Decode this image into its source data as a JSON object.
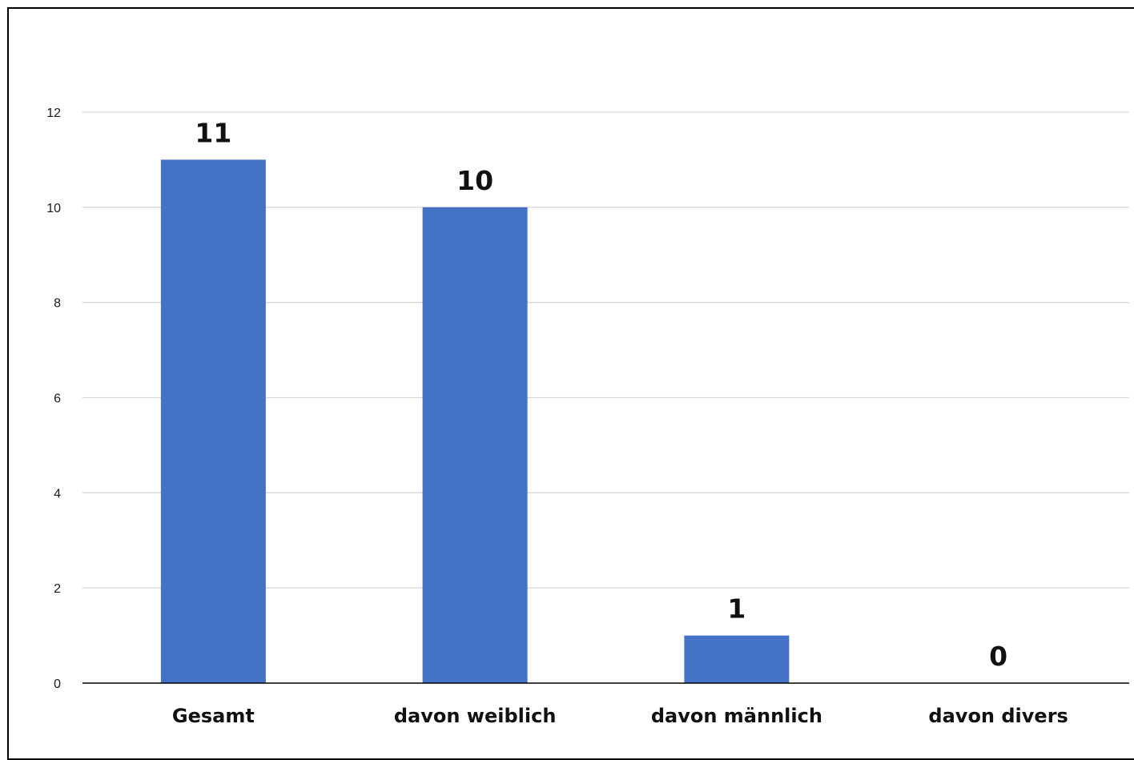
{
  "chart_data": {
    "type": "bar",
    "categories": [
      "Gesamt",
      "davon weiblich",
      "davon männlich",
      "davon divers"
    ],
    "values": [
      11,
      10,
      1,
      0
    ],
    "data_labels": [
      "11",
      "10",
      "1",
      "0"
    ],
    "y_ticks": [
      "0",
      "2",
      "4",
      "6",
      "8",
      "10",
      "12"
    ],
    "title": "",
    "xlabel": "",
    "ylabel": "",
    "ylim": [
      0,
      12
    ],
    "ytick_step": 2,
    "grid": true,
    "legend": "none",
    "colors": {
      "bar": "#4472C4",
      "grid": "#D9D9D9",
      "axis": "#000000"
    }
  }
}
